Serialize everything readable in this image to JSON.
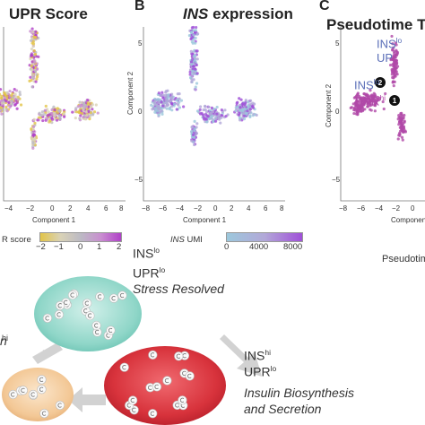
{
  "panels": {
    "a": {
      "title": "UPR Score",
      "xlabel": "Component 1",
      "ticks_x": [
        "−4",
        "−2",
        "0",
        "2",
        "4",
        "6",
        "8"
      ],
      "colorbar_label": "R score",
      "colorbar_ticks": [
        "−2",
        "−1",
        "0",
        "1",
        "2"
      ]
    },
    "b": {
      "letter": "B",
      "title_italic": "INS",
      "title_rest": " expression",
      "xlabel": "Component 1",
      "ylabel": "Component 2",
      "ticks_x": [
        "−8",
        "−6",
        "−4",
        "−2",
        "0",
        "2",
        "4",
        "6",
        "8"
      ],
      "ticks_y": [
        "5",
        "0",
        "−5"
      ],
      "colorbar_label_italic": "INS",
      "colorbar_label_rest": " UMI",
      "colorbar_ticks": [
        "0",
        "4000",
        "8000"
      ]
    },
    "c": {
      "letter": "C",
      "title": "Pseudotime T",
      "xlabel": "Componen",
      "ylabel": "Component 2",
      "ticks_x": [
        "−8",
        "−6",
        "−4",
        "−2",
        "0"
      ],
      "ticks_y": [
        "5",
        "0",
        "−5"
      ],
      "legend": [
        {
          "base": "INS",
          "sup": "lo",
          "color": "#5b6fb8"
        },
        {
          "base": "UPR",
          "sup": "hi",
          "color": "#b048a8"
        }
      ],
      "top_labels": [
        {
          "base": "INS",
          "sup": "lo"
        },
        {
          "base": "UP",
          "sup": ""
        }
      ],
      "node_labels": [
        "2",
        "1"
      ],
      "footer": "Pseudotim"
    }
  },
  "diagram": {
    "state_top": {
      "l1_base": "INS",
      "l1_sup": "lo",
      "l2_base": "UPR",
      "l2_sup": "lo",
      "l3": "Stress Resolved"
    },
    "state_right": {
      "l1_base": "INS",
      "l1_sup": "hi",
      "l2_base": "UPR",
      "l2_sup": "lo",
      "l3": "Insulin Biosynthesis",
      "l4": "and Secretion"
    },
    "state_left": {
      "l1_sup": "",
      "l2_sup": "hi",
      "l3": "n"
    }
  },
  "colors": {
    "cb_a": [
      "#e2c448",
      "#d9d2b6",
      "#bcbac4",
      "#c98ed0",
      "#b040c8"
    ],
    "cb_b": [
      "#9cc8dc",
      "#b2a8d8",
      "#a050d8"
    ],
    "teal": "#8fd6c8",
    "red": "#d8333c",
    "peach": "#f3c896",
    "arrow": "#d2d2d2"
  }
}
